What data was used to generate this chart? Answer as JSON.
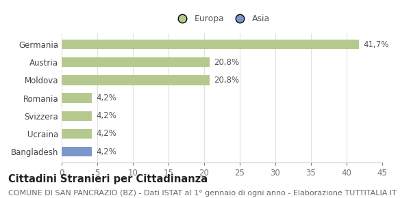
{
  "categories": [
    "Bangladesh",
    "Ucraina",
    "Svizzera",
    "Romania",
    "Moldova",
    "Austria",
    "Germania"
  ],
  "values": [
    4.2,
    4.2,
    4.2,
    4.2,
    20.8,
    20.8,
    41.7
  ],
  "colors": [
    "#7b96c9",
    "#b5c98e",
    "#b5c98e",
    "#b5c98e",
    "#b5c98e",
    "#b5c98e",
    "#b5c98e"
  ],
  "value_labels": [
    "4,2%",
    "4,2%",
    "4,2%",
    "4,2%",
    "20,8%",
    "20,8%",
    "41,7%"
  ],
  "legend": [
    {
      "label": "Europa",
      "color": "#b5c98e"
    },
    {
      "label": "Asia",
      "color": "#7b96c9"
    }
  ],
  "xlim": [
    0,
    45
  ],
  "xticks": [
    0,
    5,
    10,
    15,
    20,
    25,
    30,
    35,
    40,
    45
  ],
  "title": "Cittadini Stranieri per Cittadinanza",
  "subtitle": "COMUNE DI SAN PANCRAZIO (BZ) - Dati ISTAT al 1° gennaio di ogni anno - Elaborazione TUTTITALIA.IT",
  "background_color": "#ffffff",
  "bar_height": 0.55,
  "title_fontsize": 10.5,
  "subtitle_fontsize": 8,
  "label_fontsize": 8.5,
  "tick_fontsize": 8.5,
  "legend_fontsize": 9
}
